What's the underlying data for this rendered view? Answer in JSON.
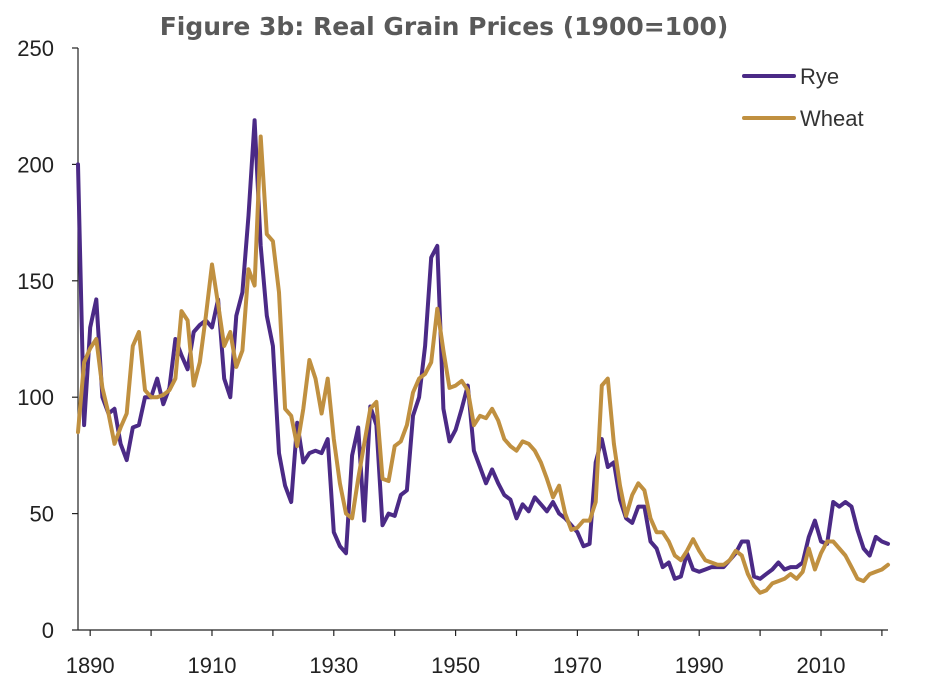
{
  "chart_data": {
    "type": "line",
    "title": "Figure 3b: Real Grain Prices (1900=100)",
    "xlabel": "",
    "ylabel": "",
    "xlim": [
      1888,
      2021
    ],
    "ylim": [
      0,
      250
    ],
    "x_ticks": [
      1890,
      1910,
      1930,
      1950,
      1970,
      1990,
      2010
    ],
    "y_ticks": [
      0,
      50,
      100,
      150,
      200,
      250
    ],
    "grid": false,
    "legend_position": "top-right",
    "series": [
      {
        "name": "Rye",
        "color": "#4b2a86",
        "points": [
          [
            1888,
            200
          ],
          [
            1889,
            88
          ],
          [
            1890,
            130
          ],
          [
            1891,
            142
          ],
          [
            1892,
            100
          ],
          [
            1893,
            93
          ],
          [
            1894,
            95
          ],
          [
            1895,
            80
          ],
          [
            1896,
            73
          ],
          [
            1897,
            87
          ],
          [
            1898,
            88
          ],
          [
            1899,
            100
          ],
          [
            1900,
            100
          ],
          [
            1901,
            108
          ],
          [
            1902,
            97
          ],
          [
            1903,
            104
          ],
          [
            1904,
            125
          ],
          [
            1905,
            118
          ],
          [
            1906,
            112
          ],
          [
            1907,
            128
          ],
          [
            1908,
            131
          ],
          [
            1909,
            133
          ],
          [
            1910,
            130
          ],
          [
            1911,
            142
          ],
          [
            1912,
            108
          ],
          [
            1913,
            100
          ],
          [
            1914,
            135
          ],
          [
            1915,
            145
          ],
          [
            1916,
            178
          ],
          [
            1917,
            219
          ],
          [
            1918,
            165
          ],
          [
            1919,
            135
          ],
          [
            1920,
            122
          ],
          [
            1921,
            76
          ],
          [
            1922,
            62
          ],
          [
            1923,
            55
          ],
          [
            1924,
            89
          ],
          [
            1925,
            72
          ],
          [
            1926,
            76
          ],
          [
            1927,
            77
          ],
          [
            1928,
            76
          ],
          [
            1929,
            82
          ],
          [
            1930,
            42
          ],
          [
            1931,
            36
          ],
          [
            1932,
            33
          ],
          [
            1933,
            75
          ],
          [
            1934,
            87
          ],
          [
            1935,
            47
          ],
          [
            1936,
            96
          ],
          [
            1937,
            88
          ],
          [
            1938,
            45
          ],
          [
            1939,
            50
          ],
          [
            1940,
            49
          ],
          [
            1941,
            58
          ],
          [
            1942,
            60
          ],
          [
            1943,
            92
          ],
          [
            1944,
            100
          ],
          [
            1945,
            122
          ],
          [
            1946,
            160
          ],
          [
            1947,
            165
          ],
          [
            1948,
            95
          ],
          [
            1949,
            81
          ],
          [
            1950,
            86
          ],
          [
            1951,
            95
          ],
          [
            1952,
            105
          ],
          [
            1953,
            77
          ],
          [
            1954,
            70
          ],
          [
            1955,
            63
          ],
          [
            1956,
            69
          ],
          [
            1957,
            63
          ],
          [
            1958,
            58
          ],
          [
            1959,
            56
          ],
          [
            1960,
            48
          ],
          [
            1961,
            54
          ],
          [
            1962,
            51
          ],
          [
            1963,
            57
          ],
          [
            1964,
            54
          ],
          [
            1965,
            51
          ],
          [
            1966,
            55
          ],
          [
            1967,
            50
          ],
          [
            1968,
            48
          ],
          [
            1969,
            45
          ],
          [
            1970,
            42
          ],
          [
            1971,
            36
          ],
          [
            1972,
            37
          ],
          [
            1973,
            72
          ],
          [
            1974,
            82
          ],
          [
            1975,
            70
          ],
          [
            1976,
            72
          ],
          [
            1977,
            56
          ],
          [
            1978,
            48
          ],
          [
            1979,
            46
          ],
          [
            1980,
            53
          ],
          [
            1981,
            53
          ],
          [
            1982,
            38
          ],
          [
            1983,
            35
          ],
          [
            1984,
            27
          ],
          [
            1985,
            29
          ],
          [
            1986,
            22
          ],
          [
            1987,
            23
          ],
          [
            1988,
            33
          ],
          [
            1989,
            26
          ],
          [
            1990,
            25
          ],
          [
            1991,
            26
          ],
          [
            1992,
            27
          ],
          [
            1993,
            27
          ],
          [
            1994,
            27
          ],
          [
            1995,
            30
          ],
          [
            1996,
            33
          ],
          [
            1997,
            38
          ],
          [
            1998,
            38
          ],
          [
            1999,
            23
          ],
          [
            2000,
            22
          ],
          [
            2001,
            24
          ],
          [
            2002,
            26
          ],
          [
            2003,
            29
          ],
          [
            2004,
            26
          ],
          [
            2005,
            27
          ],
          [
            2006,
            27
          ],
          [
            2007,
            29
          ],
          [
            2008,
            40
          ],
          [
            2009,
            47
          ],
          [
            2010,
            38
          ],
          [
            2011,
            37
          ],
          [
            2012,
            55
          ],
          [
            2013,
            53
          ],
          [
            2014,
            55
          ],
          [
            2015,
            53
          ],
          [
            2016,
            43
          ],
          [
            2017,
            35
          ],
          [
            2018,
            32
          ],
          [
            2019,
            40
          ],
          [
            2020,
            38
          ],
          [
            2021,
            37
          ]
        ]
      },
      {
        "name": "Wheat",
        "color": "#c09040",
        "points": [
          [
            1888,
            85
          ],
          [
            1889,
            115
          ],
          [
            1890,
            121
          ],
          [
            1891,
            125
          ],
          [
            1892,
            104
          ],
          [
            1893,
            93
          ],
          [
            1894,
            80
          ],
          [
            1895,
            87
          ],
          [
            1896,
            93
          ],
          [
            1897,
            122
          ],
          [
            1898,
            128
          ],
          [
            1899,
            103
          ],
          [
            1900,
            100
          ],
          [
            1901,
            100
          ],
          [
            1902,
            101
          ],
          [
            1903,
            103
          ],
          [
            1904,
            108
          ],
          [
            1905,
            137
          ],
          [
            1906,
            133
          ],
          [
            1907,
            105
          ],
          [
            1908,
            115
          ],
          [
            1909,
            135
          ],
          [
            1910,
            157
          ],
          [
            1911,
            140
          ],
          [
            1912,
            122
          ],
          [
            1913,
            128
          ],
          [
            1914,
            113
          ],
          [
            1915,
            120
          ],
          [
            1916,
            155
          ],
          [
            1917,
            148
          ],
          [
            1918,
            212
          ],
          [
            1919,
            170
          ],
          [
            1920,
            167
          ],
          [
            1921,
            145
          ],
          [
            1922,
            95
          ],
          [
            1923,
            92
          ],
          [
            1924,
            79
          ],
          [
            1925,
            95
          ],
          [
            1926,
            116
          ],
          [
            1927,
            108
          ],
          [
            1928,
            93
          ],
          [
            1929,
            108
          ],
          [
            1930,
            82
          ],
          [
            1931,
            63
          ],
          [
            1932,
            50
          ],
          [
            1933,
            48
          ],
          [
            1934,
            65
          ],
          [
            1935,
            80
          ],
          [
            1936,
            95
          ],
          [
            1937,
            98
          ],
          [
            1938,
            65
          ],
          [
            1939,
            64
          ],
          [
            1940,
            79
          ],
          [
            1941,
            81
          ],
          [
            1942,
            88
          ],
          [
            1943,
            102
          ],
          [
            1944,
            108
          ],
          [
            1945,
            110
          ],
          [
            1946,
            115
          ],
          [
            1947,
            138
          ],
          [
            1948,
            120
          ],
          [
            1949,
            104
          ],
          [
            1950,
            105
          ],
          [
            1951,
            107
          ],
          [
            1952,
            103
          ],
          [
            1953,
            88
          ],
          [
            1954,
            92
          ],
          [
            1955,
            91
          ],
          [
            1956,
            95
          ],
          [
            1957,
            90
          ],
          [
            1958,
            82
          ],
          [
            1959,
            79
          ],
          [
            1960,
            77
          ],
          [
            1961,
            81
          ],
          [
            1962,
            80
          ],
          [
            1963,
            77
          ],
          [
            1964,
            72
          ],
          [
            1965,
            65
          ],
          [
            1966,
            57
          ],
          [
            1967,
            62
          ],
          [
            1968,
            50
          ],
          [
            1969,
            43
          ],
          [
            1970,
            44
          ],
          [
            1971,
            47
          ],
          [
            1972,
            47
          ],
          [
            1973,
            55
          ],
          [
            1974,
            105
          ],
          [
            1975,
            108
          ],
          [
            1976,
            80
          ],
          [
            1977,
            62
          ],
          [
            1978,
            49
          ],
          [
            1979,
            58
          ],
          [
            1980,
            63
          ],
          [
            1981,
            60
          ],
          [
            1982,
            48
          ],
          [
            1983,
            42
          ],
          [
            1984,
            42
          ],
          [
            1985,
            38
          ],
          [
            1986,
            32
          ],
          [
            1987,
            30
          ],
          [
            1988,
            34
          ],
          [
            1989,
            39
          ],
          [
            1990,
            34
          ],
          [
            1991,
            30
          ],
          [
            1992,
            29
          ],
          [
            1993,
            28
          ],
          [
            1994,
            28
          ],
          [
            1995,
            30
          ],
          [
            1996,
            34
          ],
          [
            1997,
            32
          ],
          [
            1998,
            24
          ],
          [
            1999,
            19
          ],
          [
            2000,
            16
          ],
          [
            2001,
            17
          ],
          [
            2002,
            20
          ],
          [
            2003,
            21
          ],
          [
            2004,
            22
          ],
          [
            2005,
            24
          ],
          [
            2006,
            22
          ],
          [
            2007,
            25
          ],
          [
            2008,
            35
          ],
          [
            2009,
            26
          ],
          [
            2010,
            33
          ],
          [
            2011,
            38
          ],
          [
            2012,
            38
          ],
          [
            2013,
            35
          ],
          [
            2014,
            32
          ],
          [
            2015,
            27
          ],
          [
            2016,
            22
          ],
          [
            2017,
            21
          ],
          [
            2018,
            24
          ],
          [
            2019,
            25
          ],
          [
            2020,
            26
          ],
          [
            2021,
            28
          ]
        ]
      }
    ]
  }
}
